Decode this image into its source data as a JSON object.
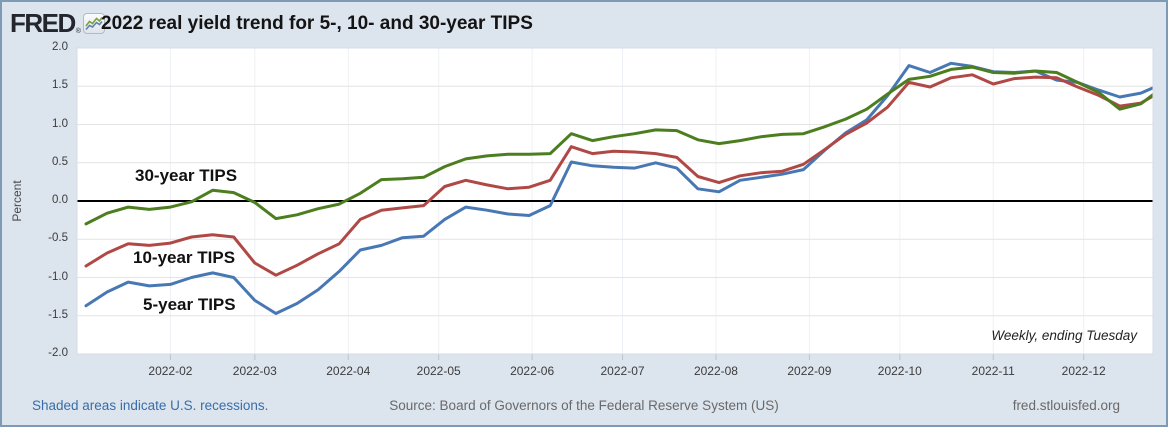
{
  "header": {
    "logo_text": "FRED",
    "reg_mark": "®",
    "title": "2022 real yield trend for 5-, 10- and 30-year TIPS"
  },
  "chart_data": {
    "type": "line",
    "title": "2022 real yield trend for 5-, 10- and 30-year TIPS",
    "ylabel": "Percent",
    "ylim": [
      -2.0,
      2.0
    ],
    "grid": "horizontal-light, zero-line-black",
    "legend_position": "labels-inside-plot",
    "frequency_note": "Weekly, ending Tuesday",
    "y_tick_labels": [
      "2.0",
      "1.5",
      "1.0",
      "0.5",
      "0.0",
      "-0.5",
      "-1.0",
      "-1.5",
      "-2.0"
    ],
    "x_tick_labels": [
      "2022-02",
      "2022-03",
      "2022-04",
      "2022-05",
      "2022-06",
      "2022-07",
      "2022-08",
      "2022-09",
      "2022-10",
      "2022-11",
      "2022-12"
    ],
    "x_range": [
      "2022-01-01",
      "2022-12-24"
    ],
    "dates": [
      "2022-01-04",
      "2022-01-11",
      "2022-01-18",
      "2022-01-25",
      "2022-02-01",
      "2022-02-08",
      "2022-02-15",
      "2022-02-22",
      "2022-03-01",
      "2022-03-08",
      "2022-03-15",
      "2022-03-22",
      "2022-03-29",
      "2022-04-05",
      "2022-04-12",
      "2022-04-19",
      "2022-04-26",
      "2022-05-03",
      "2022-05-10",
      "2022-05-17",
      "2022-05-24",
      "2022-05-31",
      "2022-06-07",
      "2022-06-14",
      "2022-06-21",
      "2022-06-28",
      "2022-07-05",
      "2022-07-12",
      "2022-07-19",
      "2022-07-26",
      "2022-08-02",
      "2022-08-09",
      "2022-08-16",
      "2022-08-23",
      "2022-08-30",
      "2022-09-06",
      "2022-09-13",
      "2022-09-20",
      "2022-09-27",
      "2022-10-04",
      "2022-10-11",
      "2022-10-18",
      "2022-10-25",
      "2022-11-01",
      "2022-11-08",
      "2022-11-15",
      "2022-11-22",
      "2022-11-29",
      "2022-12-06",
      "2022-12-13",
      "2022-12-20",
      "2022-12-27"
    ],
    "series": [
      {
        "name": "5-year TIPS",
        "color": "#4878b4",
        "values": [
          -1.37,
          -1.19,
          -1.06,
          -1.11,
          -1.09,
          -1.0,
          -0.94,
          -1.0,
          -1.3,
          -1.47,
          -1.34,
          -1.16,
          -0.92,
          -0.64,
          -0.58,
          -0.48,
          -0.46,
          -0.24,
          -0.08,
          -0.12,
          -0.17,
          -0.19,
          -0.06,
          0.51,
          0.46,
          0.44,
          0.43,
          0.5,
          0.43,
          0.16,
          0.12,
          0.27,
          0.31,
          0.35,
          0.41,
          0.66,
          0.89,
          1.06,
          1.38,
          1.77,
          1.68,
          1.8,
          1.76,
          1.69,
          1.68,
          1.7,
          1.58,
          1.55,
          1.45,
          1.36,
          1.41,
          1.53
        ]
      },
      {
        "name": "10-year TIPS",
        "color": "#b04946",
        "values": [
          -0.85,
          -0.68,
          -0.56,
          -0.58,
          -0.55,
          -0.47,
          -0.44,
          -0.47,
          -0.81,
          -0.97,
          -0.84,
          -0.69,
          -0.56,
          -0.24,
          -0.12,
          -0.09,
          -0.06,
          0.19,
          0.27,
          0.21,
          0.16,
          0.18,
          0.27,
          0.71,
          0.62,
          0.65,
          0.64,
          0.62,
          0.57,
          0.32,
          0.24,
          0.33,
          0.37,
          0.39,
          0.48,
          0.67,
          0.87,
          1.02,
          1.23,
          1.55,
          1.49,
          1.61,
          1.65,
          1.53,
          1.6,
          1.62,
          1.61,
          1.49,
          1.38,
          1.24,
          1.28,
          1.44
        ]
      },
      {
        "name": "30-year TIPS",
        "color": "#4c7e1f",
        "values": [
          -0.3,
          -0.16,
          -0.08,
          -0.11,
          -0.08,
          -0.01,
          0.14,
          0.11,
          -0.02,
          -0.23,
          -0.18,
          -0.1,
          -0.04,
          0.1,
          0.28,
          0.29,
          0.31,
          0.45,
          0.55,
          0.59,
          0.61,
          0.61,
          0.62,
          0.88,
          0.79,
          0.84,
          0.88,
          0.93,
          0.92,
          0.8,
          0.75,
          0.79,
          0.84,
          0.87,
          0.88,
          0.97,
          1.07,
          1.2,
          1.4,
          1.59,
          1.63,
          1.72,
          1.75,
          1.68,
          1.67,
          1.7,
          1.68,
          1.55,
          1.42,
          1.2,
          1.27,
          1.48
        ]
      }
    ],
    "zero_line_color": "#000000"
  },
  "footer": {
    "recessions_note": "Shaded areas indicate U.S. recessions.",
    "source": "Source: Board of Governors of the Federal Reserve System (US)",
    "site": "fred.stlouisfed.org"
  }
}
